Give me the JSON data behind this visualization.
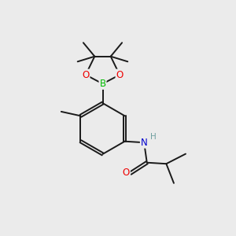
{
  "bg_color": "#ebebeb",
  "bond_color": "#1a1a1a",
  "bond_width": 1.4,
  "atom_colors": {
    "B": "#00bb00",
    "O": "#ee0000",
    "N": "#0000cc",
    "H": "#70a0a0",
    "C": "#1a1a1a"
  },
  "font_size_atom": 8.5,
  "font_size_small": 7.5
}
